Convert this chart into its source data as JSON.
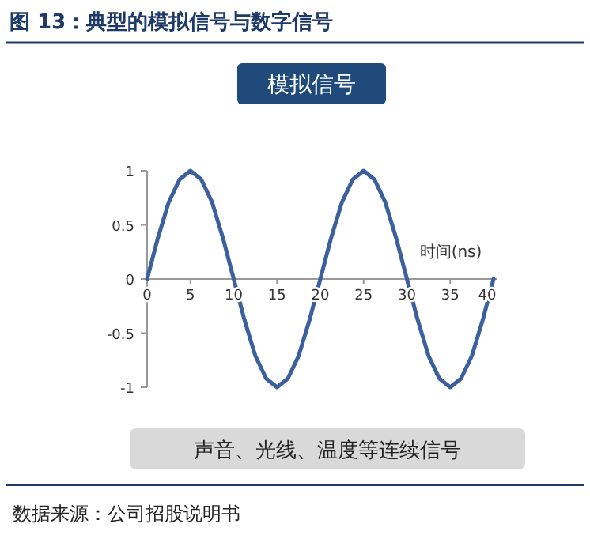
{
  "chart_data": {
    "type": "line",
    "title": "图 13：典型的模拟信号与数字信号",
    "subtitle": "模拟信号",
    "xlabel": "时间(ns)",
    "x": [
      0,
      1.25,
      2.5,
      3.75,
      5,
      6.25,
      7.5,
      8.75,
      10,
      11.25,
      12.5,
      13.75,
      15,
      16.25,
      17.5,
      18.75,
      20,
      21.25,
      22.5,
      23.75,
      25,
      26.25,
      27.5,
      28.75,
      30,
      31.25,
      32.5,
      33.75,
      35,
      36.25,
      37.5,
      38.75,
      40
    ],
    "series": [
      {
        "color": "#3c5f9e",
        "values": [
          0,
          0.38,
          0.71,
          0.92,
          1,
          0.92,
          0.71,
          0.38,
          0,
          -0.38,
          -0.71,
          -0.92,
          -1,
          -0.92,
          -0.71,
          -0.38,
          0,
          0.38,
          0.71,
          0.92,
          1,
          0.92,
          0.71,
          0.38,
          0,
          -0.38,
          -0.71,
          -0.92,
          -1,
          -0.92,
          -0.71,
          -0.38,
          0
        ]
      }
    ],
    "xlim": [
      0,
      40
    ],
    "xticks": [
      0,
      5,
      10,
      15,
      20,
      25,
      30,
      35,
      40
    ],
    "ylim": [
      -1,
      1
    ],
    "yticks": [
      -1,
      -0.5,
      0,
      0.5,
      1
    ],
    "grid": false,
    "marker": "none",
    "line_style": "solid",
    "annotations": [
      "声音、光线、温度等连续信号",
      "数据来源：公司招股说明书"
    ]
  }
}
